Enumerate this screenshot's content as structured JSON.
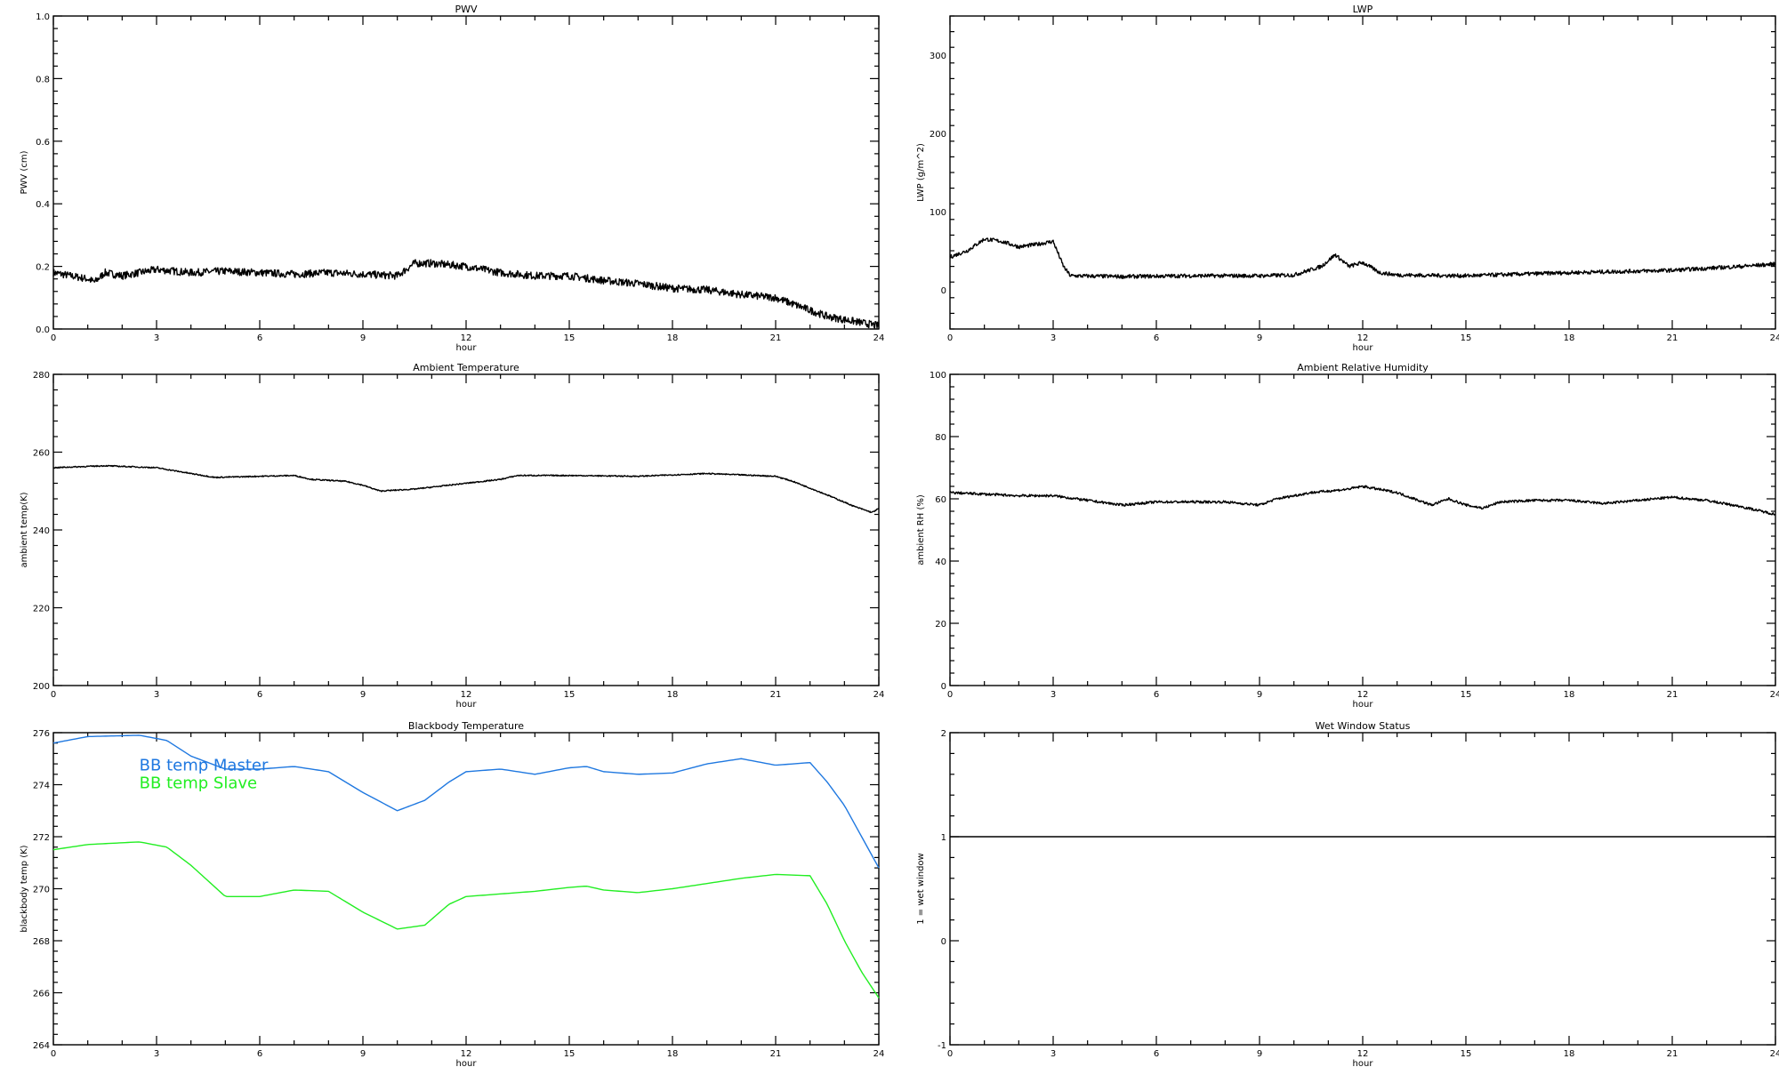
{
  "xlabel": "hour",
  "x_ticks": [
    "0",
    "3",
    "6",
    "9",
    "12",
    "15",
    "18",
    "21",
    "24"
  ],
  "chart_data": [
    {
      "id": "pwv",
      "type": "line",
      "title": "PWV",
      "xlabel": "hour",
      "ylabel": "PWV (cm)",
      "xlim": [
        0,
        24
      ],
      "ylim": [
        0,
        1.0
      ],
      "y_ticks": [
        "0.0",
        "0.2",
        "0.4",
        "0.6",
        "0.8",
        "1.0"
      ],
      "y_tick_values": [
        0,
        0.2,
        0.4,
        0.6,
        0.8,
        1.0
      ],
      "noise": 0.012,
      "series": [
        {
          "name": "",
          "color": "#000000",
          "x": [
            0,
            1,
            1.2,
            1.5,
            2,
            3,
            4,
            5,
            6,
            7,
            8,
            9,
            10,
            10.5,
            11,
            12,
            13,
            14,
            15,
            16,
            17,
            18,
            19,
            20,
            21,
            22,
            22.5,
            23,
            23.5,
            24
          ],
          "y": [
            0.18,
            0.16,
            0.15,
            0.18,
            0.17,
            0.19,
            0.18,
            0.185,
            0.18,
            0.175,
            0.18,
            0.175,
            0.17,
            0.21,
            0.21,
            0.2,
            0.18,
            0.17,
            0.17,
            0.155,
            0.145,
            0.13,
            0.125,
            0.11,
            0.1,
            0.06,
            0.04,
            0.03,
            0.02,
            0.01
          ]
        }
      ]
    },
    {
      "id": "lwp",
      "type": "line",
      "title": "LWP",
      "xlabel": "hour",
      "ylabel": "LWP (g/m^2)",
      "xlim": [
        0,
        24
      ],
      "ylim": [
        -50,
        350
      ],
      "y_ticks": [
        "0",
        "100",
        "200",
        "300"
      ],
      "y_tick_values": [
        0,
        100,
        200,
        300
      ],
      "noise": 2.5,
      "series": [
        {
          "name": "",
          "color": "#000000",
          "x": [
            0,
            0.5,
            1,
            1.5,
            2,
            2.5,
            3,
            3.3,
            3.5,
            5,
            7,
            9,
            10,
            10.8,
            11.2,
            11.6,
            12,
            12.5,
            13,
            15,
            18,
            21,
            23,
            24
          ],
          "y": [
            42,
            50,
            65,
            62,
            55,
            58,
            62,
            30,
            18,
            17,
            18,
            18,
            19,
            30,
            45,
            30,
            35,
            22,
            19,
            18,
            22,
            25,
            30,
            33
          ]
        }
      ]
    },
    {
      "id": "ambient-temperature",
      "type": "line",
      "title": "Ambient Temperature",
      "xlabel": "hour",
      "ylabel": "ambient temp(K)",
      "xlim": [
        0,
        24
      ],
      "ylim": [
        200,
        280
      ],
      "y_ticks": [
        "200",
        "220",
        "240",
        "260",
        "280"
      ],
      "y_tick_values": [
        200,
        220,
        240,
        260,
        280
      ],
      "noise": 0.15,
      "series": [
        {
          "name": "",
          "color": "#000000",
          "x": [
            0,
            1.5,
            3,
            4,
            4.7,
            6,
            7,
            7.5,
            8.5,
            9,
            9.5,
            10.5,
            12,
            13,
            13.5,
            15,
            17,
            19,
            21,
            21.5,
            22.5,
            23.3,
            23.8,
            24
          ],
          "y": [
            256,
            256.5,
            256,
            254.5,
            253.5,
            253.8,
            254,
            253,
            252.5,
            251.5,
            250,
            250.5,
            252,
            253,
            254,
            254,
            253.8,
            254.5,
            253.8,
            252.5,
            249,
            246,
            244.5,
            245.5
          ]
        }
      ]
    },
    {
      "id": "ambient-relative-humidity",
      "type": "line",
      "title": "Ambient Relative Humidity",
      "xlabel": "hour",
      "ylabel": "ambient RH (%)",
      "xlim": [
        0,
        24
      ],
      "ylim": [
        0,
        100
      ],
      "y_ticks": [
        "0",
        "20",
        "40",
        "60",
        "80",
        "100"
      ],
      "y_tick_values": [
        0,
        20,
        40,
        60,
        80,
        100
      ],
      "noise": 0.4,
      "series": [
        {
          "name": "",
          "color": "#000000",
          "x": [
            0,
            1,
            2,
            3,
            4,
            5,
            6,
            7,
            8,
            9,
            9.5,
            10.5,
            11.5,
            12,
            13,
            14,
            14.5,
            15,
            15.5,
            16,
            17,
            18,
            19,
            20,
            21,
            22,
            23,
            24
          ],
          "y": [
            62,
            61.5,
            61,
            61,
            59.5,
            58,
            59,
            59,
            59,
            58,
            60,
            62,
            63,
            64,
            62,
            58,
            60,
            58,
            57,
            59,
            59.5,
            59.5,
            58.5,
            59.5,
            60.5,
            59.5,
            57.5,
            55
          ]
        }
      ]
    },
    {
      "id": "blackbody-temperature",
      "type": "line",
      "title": "Blackbody Temperature",
      "xlabel": "hour",
      "ylabel": "blackbody temp (K)",
      "xlim": [
        0,
        24
      ],
      "ylim": [
        264,
        276
      ],
      "y_ticks": [
        "264",
        "266",
        "268",
        "270",
        "272",
        "274",
        "276"
      ],
      "y_tick_values": [
        264,
        266,
        268,
        270,
        272,
        274,
        276
      ],
      "noise": 0,
      "legend": "top-left",
      "series": [
        {
          "name": "BB temp Master",
          "color": "#1f78e0",
          "x": [
            0,
            1,
            2.5,
            3.3,
            4,
            5,
            6,
            7,
            8,
            9,
            10,
            10.8,
            11.5,
            12,
            13,
            14,
            15,
            15.5,
            16,
            17,
            18,
            19,
            20,
            21,
            22,
            22.5,
            23,
            23.5,
            24
          ],
          "y": [
            275.6,
            275.85,
            275.9,
            275.7,
            275.1,
            274.6,
            274.6,
            274.7,
            274.5,
            273.7,
            273,
            273.4,
            274.1,
            274.5,
            274.6,
            274.4,
            274.65,
            274.7,
            274.5,
            274.4,
            274.45,
            274.8,
            275,
            274.75,
            274.85,
            274.1,
            273.2,
            272,
            270.8
          ]
        },
        {
          "name": "BB temp Slave",
          "color": "#22ee22",
          "x": [
            0,
            1,
            2.5,
            3.3,
            4,
            5,
            6,
            7,
            8,
            9,
            10,
            10.8,
            11.5,
            12,
            13,
            14,
            15,
            15.5,
            16,
            17,
            18,
            19,
            20,
            21,
            22,
            22.5,
            23,
            23.5,
            24
          ],
          "y": [
            271.5,
            271.7,
            271.8,
            271.6,
            270.9,
            269.7,
            269.7,
            269.95,
            269.9,
            269.1,
            268.45,
            268.6,
            269.4,
            269.7,
            269.8,
            269.9,
            270.05,
            270.1,
            269.95,
            269.85,
            270,
            270.2,
            270.4,
            270.55,
            270.5,
            269.4,
            268,
            266.8,
            265.8
          ]
        }
      ]
    },
    {
      "id": "wet-window-status",
      "type": "line",
      "title": "Wet Window Status",
      "xlabel": "hour",
      "ylabel": "1 = wet window",
      "xlim": [
        0,
        24
      ],
      "ylim": [
        -1,
        2
      ],
      "y_ticks": [
        "-1",
        "0",
        "1",
        "2"
      ],
      "y_tick_values": [
        -1,
        0,
        1,
        2
      ],
      "noise": 0,
      "series": [
        {
          "name": "",
          "color": "#000000",
          "x": [
            0,
            24
          ],
          "y": [
            1,
            1
          ]
        }
      ]
    }
  ]
}
